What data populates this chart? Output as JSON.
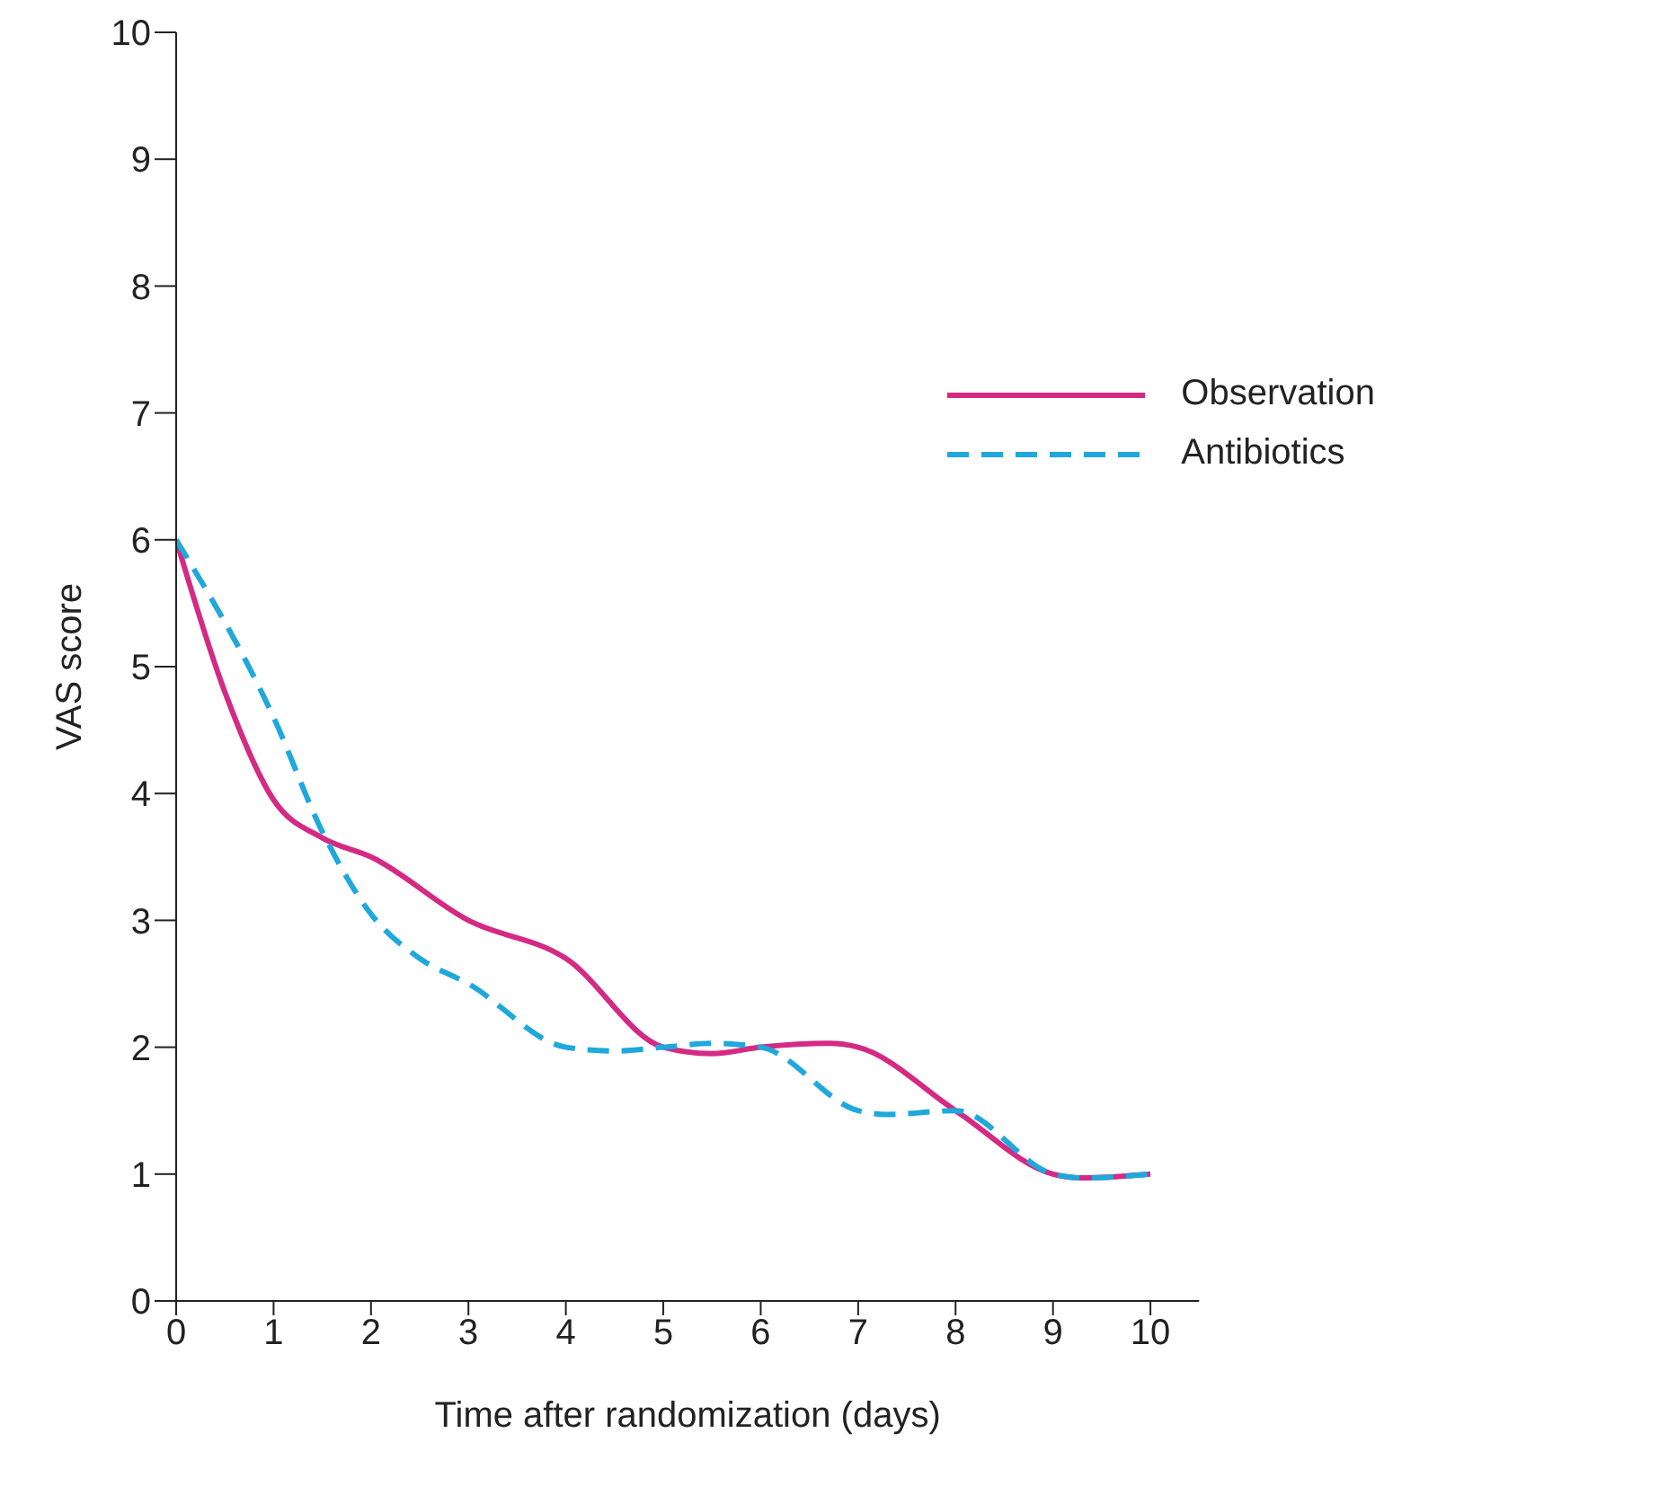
{
  "chart_data": {
    "type": "line",
    "xlabel": "Time after randomization (days)",
    "ylabel": "VAS score",
    "xlim": [
      0,
      10.5
    ],
    "xticks": [
      0,
      1,
      2,
      3,
      4,
      5,
      6,
      7,
      8,
      9,
      10
    ],
    "ylim": [
      0,
      10
    ],
    "yticks": [
      0,
      1,
      2,
      3,
      4,
      5,
      6,
      7,
      8,
      9,
      10
    ],
    "grid": false,
    "legend": "top right",
    "marker": "none",
    "series": [
      {
        "name": "Observation",
        "color": "#d42a84",
        "line_style": "solid",
        "x": [
          0,
          0.5,
          1,
          1.5,
          2,
          3,
          4,
          5,
          5.5,
          6,
          6.7,
          7,
          8,
          9,
          9.3,
          10
        ],
        "values": [
          6,
          4.8,
          3.95,
          3.65,
          3.5,
          3.0,
          2.7,
          2.0,
          1.95,
          2.0,
          2.03,
          2.0,
          1.5,
          1.0,
          0.97,
          1.0
        ]
      },
      {
        "name": "Antibiotics",
        "color": "#1fa8dc",
        "line_style": "dashed",
        "x": [
          0,
          1,
          1.5,
          2,
          2.5,
          3,
          4,
          4.5,
          5,
          5.5,
          6,
          7,
          7.3,
          8,
          9,
          9.3,
          10
        ],
        "values": [
          6,
          4.6,
          3.7,
          3.05,
          2.7,
          2.5,
          2.0,
          1.97,
          2.0,
          2.03,
          2.0,
          1.5,
          1.47,
          1.5,
          1.0,
          0.97,
          1.0
        ]
      }
    ]
  }
}
